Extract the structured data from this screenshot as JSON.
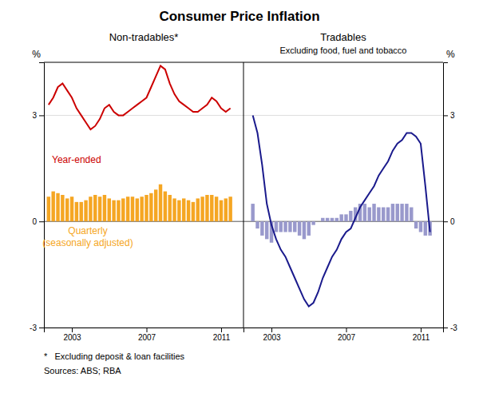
{
  "title": "Consumer Price Inflation",
  "annotations": [
    "*   Excluding deposit & loan facilities",
    "Sources: ABS; RBA"
  ],
  "chart_data": [
    {
      "type": "bar",
      "title": "Non-tradables*",
      "ylabel": "%",
      "xlim": [
        2001.5,
        2012.2
      ],
      "xticks": [
        2003,
        2007,
        2011
      ],
      "ylim": [
        -3.0,
        4.5
      ],
      "yticks": [
        -3,
        0,
        3
      ],
      "grid": true,
      "x": [
        2001.75,
        2002.0,
        2002.25,
        2002.5,
        2002.75,
        2003.0,
        2003.25,
        2003.5,
        2003.75,
        2004.0,
        2004.25,
        2004.5,
        2004.75,
        2005.0,
        2005.25,
        2005.5,
        2005.75,
        2006.0,
        2006.25,
        2006.5,
        2006.75,
        2007.0,
        2007.25,
        2007.5,
        2007.75,
        2008.0,
        2008.25,
        2008.5,
        2008.75,
        2009.0,
        2009.25,
        2009.5,
        2009.75,
        2010.0,
        2010.25,
        2010.5,
        2010.75,
        2011.0,
        2011.25,
        2011.5
      ],
      "series": [
        {
          "type": "bar",
          "name": "Quarterly\n(seasonally adjusted)",
          "color": "#f5a623",
          "values": [
            0.7,
            0.85,
            0.8,
            0.75,
            0.65,
            0.7,
            0.55,
            0.55,
            0.6,
            0.7,
            0.75,
            0.7,
            0.75,
            0.65,
            0.6,
            0.6,
            0.65,
            0.7,
            0.7,
            0.65,
            0.7,
            0.75,
            0.8,
            0.9,
            1.05,
            0.85,
            0.75,
            0.65,
            0.6,
            0.65,
            0.6,
            0.55,
            0.65,
            0.7,
            0.75,
            0.75,
            0.7,
            0.6,
            0.65,
            0.7
          ]
        },
        {
          "type": "line",
          "name": "Year-ended",
          "color": "#cc0000",
          "values": [
            3.3,
            3.5,
            3.8,
            3.9,
            3.7,
            3.5,
            3.2,
            3.0,
            2.8,
            2.6,
            2.7,
            2.9,
            3.2,
            3.3,
            3.1,
            3.0,
            3.0,
            3.1,
            3.2,
            3.3,
            3.4,
            3.5,
            3.8,
            4.1,
            4.4,
            4.3,
            3.9,
            3.6,
            3.4,
            3.3,
            3.2,
            3.1,
            3.1,
            3.2,
            3.3,
            3.5,
            3.4,
            3.2,
            3.1,
            3.2
          ]
        }
      ]
    },
    {
      "type": "bar",
      "title": "Tradables",
      "subtitle": "Excluding food, fuel and tobacco",
      "ylabel": "%",
      "xlim": [
        2001.5,
        2012.2
      ],
      "xticks": [
        2003,
        2007,
        2011
      ],
      "ylim": [
        -3.0,
        4.5
      ],
      "yticks": [
        -3,
        0,
        3
      ],
      "grid": true,
      "x": [
        2002.0,
        2002.25,
        2002.5,
        2002.75,
        2003.0,
        2003.25,
        2003.5,
        2003.75,
        2004.0,
        2004.25,
        2004.5,
        2004.75,
        2005.0,
        2005.25,
        2005.5,
        2005.75,
        2006.0,
        2006.25,
        2006.5,
        2006.75,
        2007.0,
        2007.25,
        2007.5,
        2007.75,
        2008.0,
        2008.25,
        2008.5,
        2008.75,
        2009.0,
        2009.25,
        2009.5,
        2009.75,
        2010.0,
        2010.25,
        2010.5,
        2010.75,
        2011.0,
        2011.25,
        2011.5
      ],
      "series": [
        {
          "type": "bar",
          "color": "#9999cc",
          "values": [
            0.5,
            -0.2,
            -0.4,
            -0.5,
            -0.6,
            -0.3,
            -0.3,
            -0.3,
            -0.3,
            -0.3,
            -0.4,
            -0.5,
            -0.4,
            -0.1,
            0.0,
            0.1,
            0.1,
            0.1,
            0.1,
            0.2,
            0.2,
            0.3,
            0.4,
            0.5,
            0.5,
            0.4,
            0.5,
            0.4,
            0.4,
            0.4,
            0.5,
            0.5,
            0.5,
            0.5,
            0.4,
            -0.2,
            -0.3,
            -0.4,
            -0.4
          ]
        },
        {
          "type": "line",
          "color": "#1a1a8c",
          "values": [
            3.0,
            2.5,
            1.6,
            0.5,
            -0.1,
            -0.5,
            -0.8,
            -1.0,
            -1.3,
            -1.6,
            -1.9,
            -2.2,
            -2.4,
            -2.3,
            -2.0,
            -1.6,
            -1.3,
            -1.0,
            -0.8,
            -0.5,
            -0.3,
            -0.2,
            0.1,
            0.4,
            0.6,
            0.8,
            1.0,
            1.3,
            1.5,
            1.7,
            2.0,
            2.2,
            2.3,
            2.5,
            2.5,
            2.4,
            2.2,
            1.0,
            -0.3
          ]
        }
      ]
    }
  ]
}
